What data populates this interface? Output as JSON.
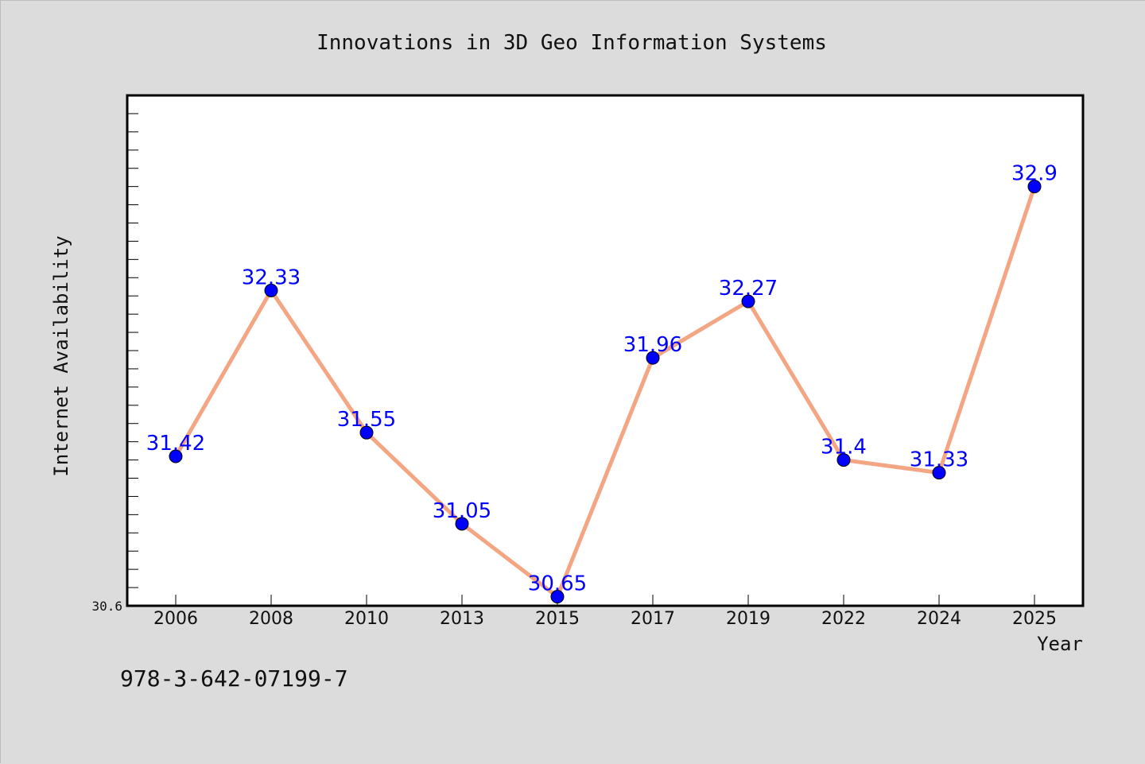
{
  "chart_data": {
    "type": "line",
    "title": "Innovations in 3D Geo Information Systems",
    "xlabel": "Year",
    "ylabel": "Internet Availability",
    "categories": [
      "2006",
      "2008",
      "2010",
      "2013",
      "2015",
      "2017",
      "2019",
      "2022",
      "2024",
      "2025"
    ],
    "values": [
      31.42,
      32.33,
      31.55,
      31.05,
      30.65,
      31.96,
      32.27,
      31.4,
      31.33,
      32.9
    ],
    "value_labels": [
      "31.42",
      "32.33",
      "31.55",
      "31.05",
      "30.65",
      "31.96",
      "32.27",
      "31.4",
      "31.33",
      "32.9"
    ],
    "ylim": [
      30.6,
      33.4
    ],
    "y_tick_labels": [
      "30.6"
    ],
    "grid": false,
    "legend": "none",
    "series_color": "#f4a582",
    "marker_color": "#0000ff",
    "label_color": "#0000ff"
  },
  "footer": {
    "isbn": "978-3-642-07199-7"
  }
}
